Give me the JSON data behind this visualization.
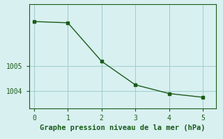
{
  "x": [
    0,
    1,
    2,
    3,
    4,
    5
  ],
  "y": [
    1006.8,
    1006.75,
    1005.2,
    1004.25,
    1003.9,
    1003.75
  ],
  "line_color": "#1a5c1a",
  "marker": "s",
  "markersize": 2.5,
  "linewidth": 1.0,
  "bg_color": "#d8f0f0",
  "xlabel": "Graphe pression niveau de la mer (hPa)",
  "xlabel_fontsize": 7.5,
  "xlabel_color": "#1a5c1a",
  "yticks": [
    1004,
    1005
  ],
  "xticks": [
    0,
    1,
    2,
    3,
    4,
    5
  ],
  "xlim": [
    -0.15,
    5.4
  ],
  "ylim": [
    1003.3,
    1007.5
  ],
  "grid_color": "#a0cccc",
  "tick_labelsize": 7,
  "tick_color": "#1a5c1a",
  "spine_color": "#1a5c1a"
}
